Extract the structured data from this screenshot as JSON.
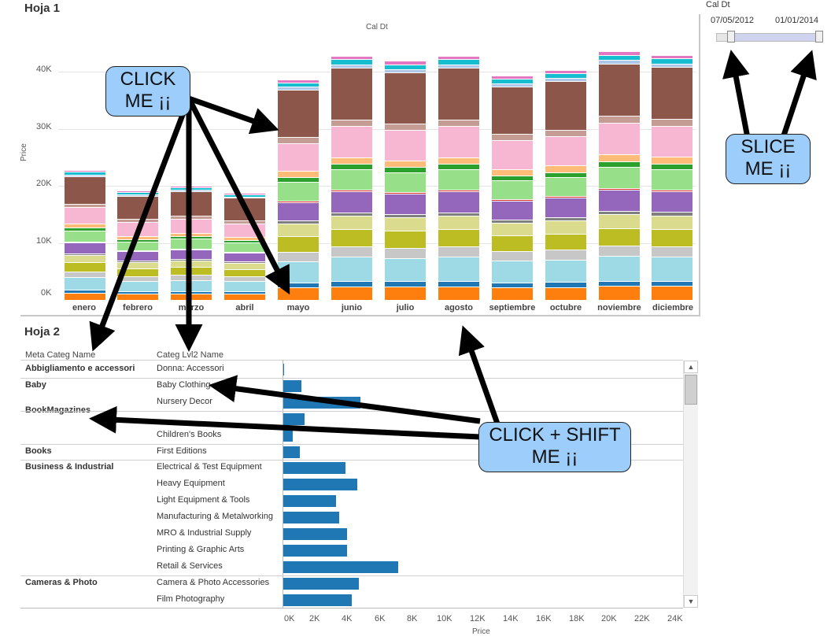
{
  "sheet1": {
    "title": "Hoja 1",
    "top_label": "Cal Dt",
    "y_axis_title": "Price",
    "y_ticks": [
      "40K",
      "30K",
      "20K",
      "10K",
      "0K"
    ],
    "months": [
      "enero",
      "febrero",
      "marzo",
      "abril",
      "mayo",
      "junio",
      "julio",
      "agosto",
      "septiembre",
      "octubre",
      "noviembre",
      "diciembre"
    ]
  },
  "slider": {
    "title": "Cal Dt",
    "start": "07/05/2012",
    "end": "01/01/2014"
  },
  "sheet2": {
    "title": "Hoja 2",
    "col1_header": "Meta Categ Name",
    "col2_header": "Categ Lvl2 Name",
    "x_axis_title": "Price",
    "x_ticks": [
      "0K",
      "2K",
      "4K",
      "6K",
      "8K",
      "10K",
      "12K",
      "14K",
      "16K",
      "18K",
      "20K",
      "22K",
      "24K"
    ],
    "rows": [
      {
        "meta": "Abbigliamento e accessori",
        "lvl2": "Donna: Accessori",
        "value": 0.05
      },
      {
        "meta": "Baby",
        "lvl2": "Baby Clothing",
        "value": 1.1
      },
      {
        "meta": "",
        "lvl2": "Nursery Decor",
        "value": 4.7
      },
      {
        "meta": "BookMagazines",
        "lvl2": "",
        "value": 1.3
      },
      {
        "meta": "",
        "lvl2": "Children's Books",
        "value": 0.6
      },
      {
        "meta": "Books",
        "lvl2": "First Editions",
        "value": 1.0
      },
      {
        "meta": "Business & Industrial",
        "lvl2": "Electrical & Test Equipment",
        "value": 3.8
      },
      {
        "meta": "",
        "lvl2": "Heavy Equipment",
        "value": 4.5
      },
      {
        "meta": "",
        "lvl2": "Light Equipment & Tools",
        "value": 3.2
      },
      {
        "meta": "",
        "lvl2": "Manufacturing & Metalworking",
        "value": 3.4
      },
      {
        "meta": "",
        "lvl2": "MRO & Industrial Supply",
        "value": 3.9
      },
      {
        "meta": "",
        "lvl2": "Printing & Graphic Arts",
        "value": 3.9
      },
      {
        "meta": "",
        "lvl2": "Retail & Services",
        "value": 7.0
      },
      {
        "meta": "Cameras & Photo",
        "lvl2": "Camera & Photo Accessories",
        "value": 4.6
      },
      {
        "meta": "",
        "lvl2": "Film Photography",
        "value": 4.2
      }
    ]
  },
  "callouts": {
    "click": "CLICK ME ¡¡",
    "slice": "SLICE ME ¡¡",
    "shift": "CLICK + SHIFT ME ¡¡"
  },
  "chart_data": [
    {
      "type": "bar",
      "stacked": true,
      "title": "",
      "xlabel": "",
      "ylabel": "Price",
      "ylim": [
        0,
        45000
      ],
      "categories": [
        "enero",
        "febrero",
        "marzo",
        "abril",
        "mayo",
        "junio",
        "julio",
        "agosto",
        "septiembre",
        "octubre",
        "noviembre",
        "diciembre"
      ],
      "totals": [
        22800,
        19200,
        20000,
        18800,
        38700,
        42800,
        41900,
        42800,
        39300,
        40300,
        43600,
        42900
      ]
    },
    {
      "type": "bar",
      "orientation": "horizontal",
      "xlabel": "Price",
      "xlim": [
        0,
        24000
      ],
      "categories": [
        "Donna: Accessori",
        "Baby Clothing",
        "Nursery Decor",
        "BookMagazines",
        "Children's Books",
        "First Editions",
        "Electrical & Test Equipment",
        "Heavy Equipment",
        "Light Equipment & Tools",
        "Manufacturing & Metalworking",
        "MRO & Industrial Supply",
        "Printing & Graphic Arts",
        "Retail & Services",
        "Camera & Photo Accessories",
        "Film Photography"
      ],
      "values": [
        50,
        1100,
        4700,
        1300,
        600,
        1000,
        3800,
        4500,
        3200,
        3400,
        3900,
        3900,
        7000,
        4600,
        4200
      ]
    }
  ],
  "colors": {
    "bar_blue": "#1f77b4",
    "callout_fill": "#9dcdfa"
  }
}
